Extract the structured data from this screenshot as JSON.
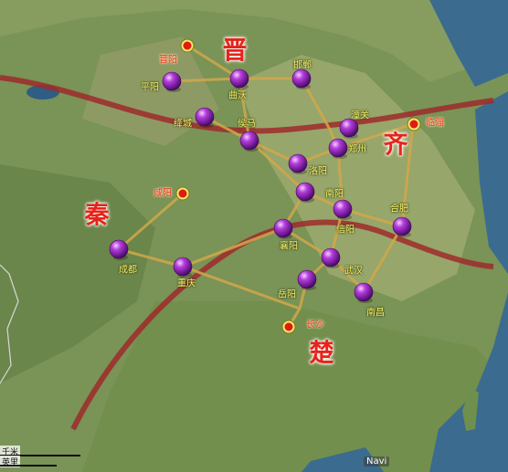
{
  "map": {
    "states": [
      {
        "id": "jin",
        "label": "晋"
      },
      {
        "id": "qin",
        "label": "秦"
      },
      {
        "id": "qi",
        "label": "齐"
      },
      {
        "id": "chu",
        "label": "楚"
      }
    ],
    "capitals": [
      {
        "id": "jinyang",
        "label": "晋阳"
      },
      {
        "id": "xianyang",
        "label": "咸阳"
      },
      {
        "id": "linzi",
        "label": "临淄"
      },
      {
        "id": "changsha-capital",
        "label": "长沙"
      }
    ],
    "cities": [
      {
        "id": "pingyang",
        "label": "平阳"
      },
      {
        "id": "quwo",
        "label": "曲沃"
      },
      {
        "id": "handan",
        "label": "邯郸"
      },
      {
        "id": "jiangcheng",
        "label": "绛城"
      },
      {
        "id": "houma",
        "label": "侯马"
      },
      {
        "id": "puguan",
        "label": "潼关"
      },
      {
        "id": "zhengzhou",
        "label": "郑州"
      },
      {
        "id": "luoyang",
        "label": "洛阳"
      },
      {
        "id": "nanyang",
        "label": "南阳"
      },
      {
        "id": "hefei",
        "label": "合肥"
      },
      {
        "id": "xinyang",
        "label": "信阳"
      },
      {
        "id": "xiangyang",
        "label": "襄阳"
      },
      {
        "id": "chengdu",
        "label": "成都"
      },
      {
        "id": "chongqing",
        "label": "重庆"
      },
      {
        "id": "wuhan",
        "label": "武汉"
      },
      {
        "id": "yueyang",
        "label": "岳阳"
      },
      {
        "id": "nanchang",
        "label": "南昌"
      }
    ],
    "scale": {
      "km": "千米",
      "mi": "英里"
    },
    "logo": "Navi"
  }
}
